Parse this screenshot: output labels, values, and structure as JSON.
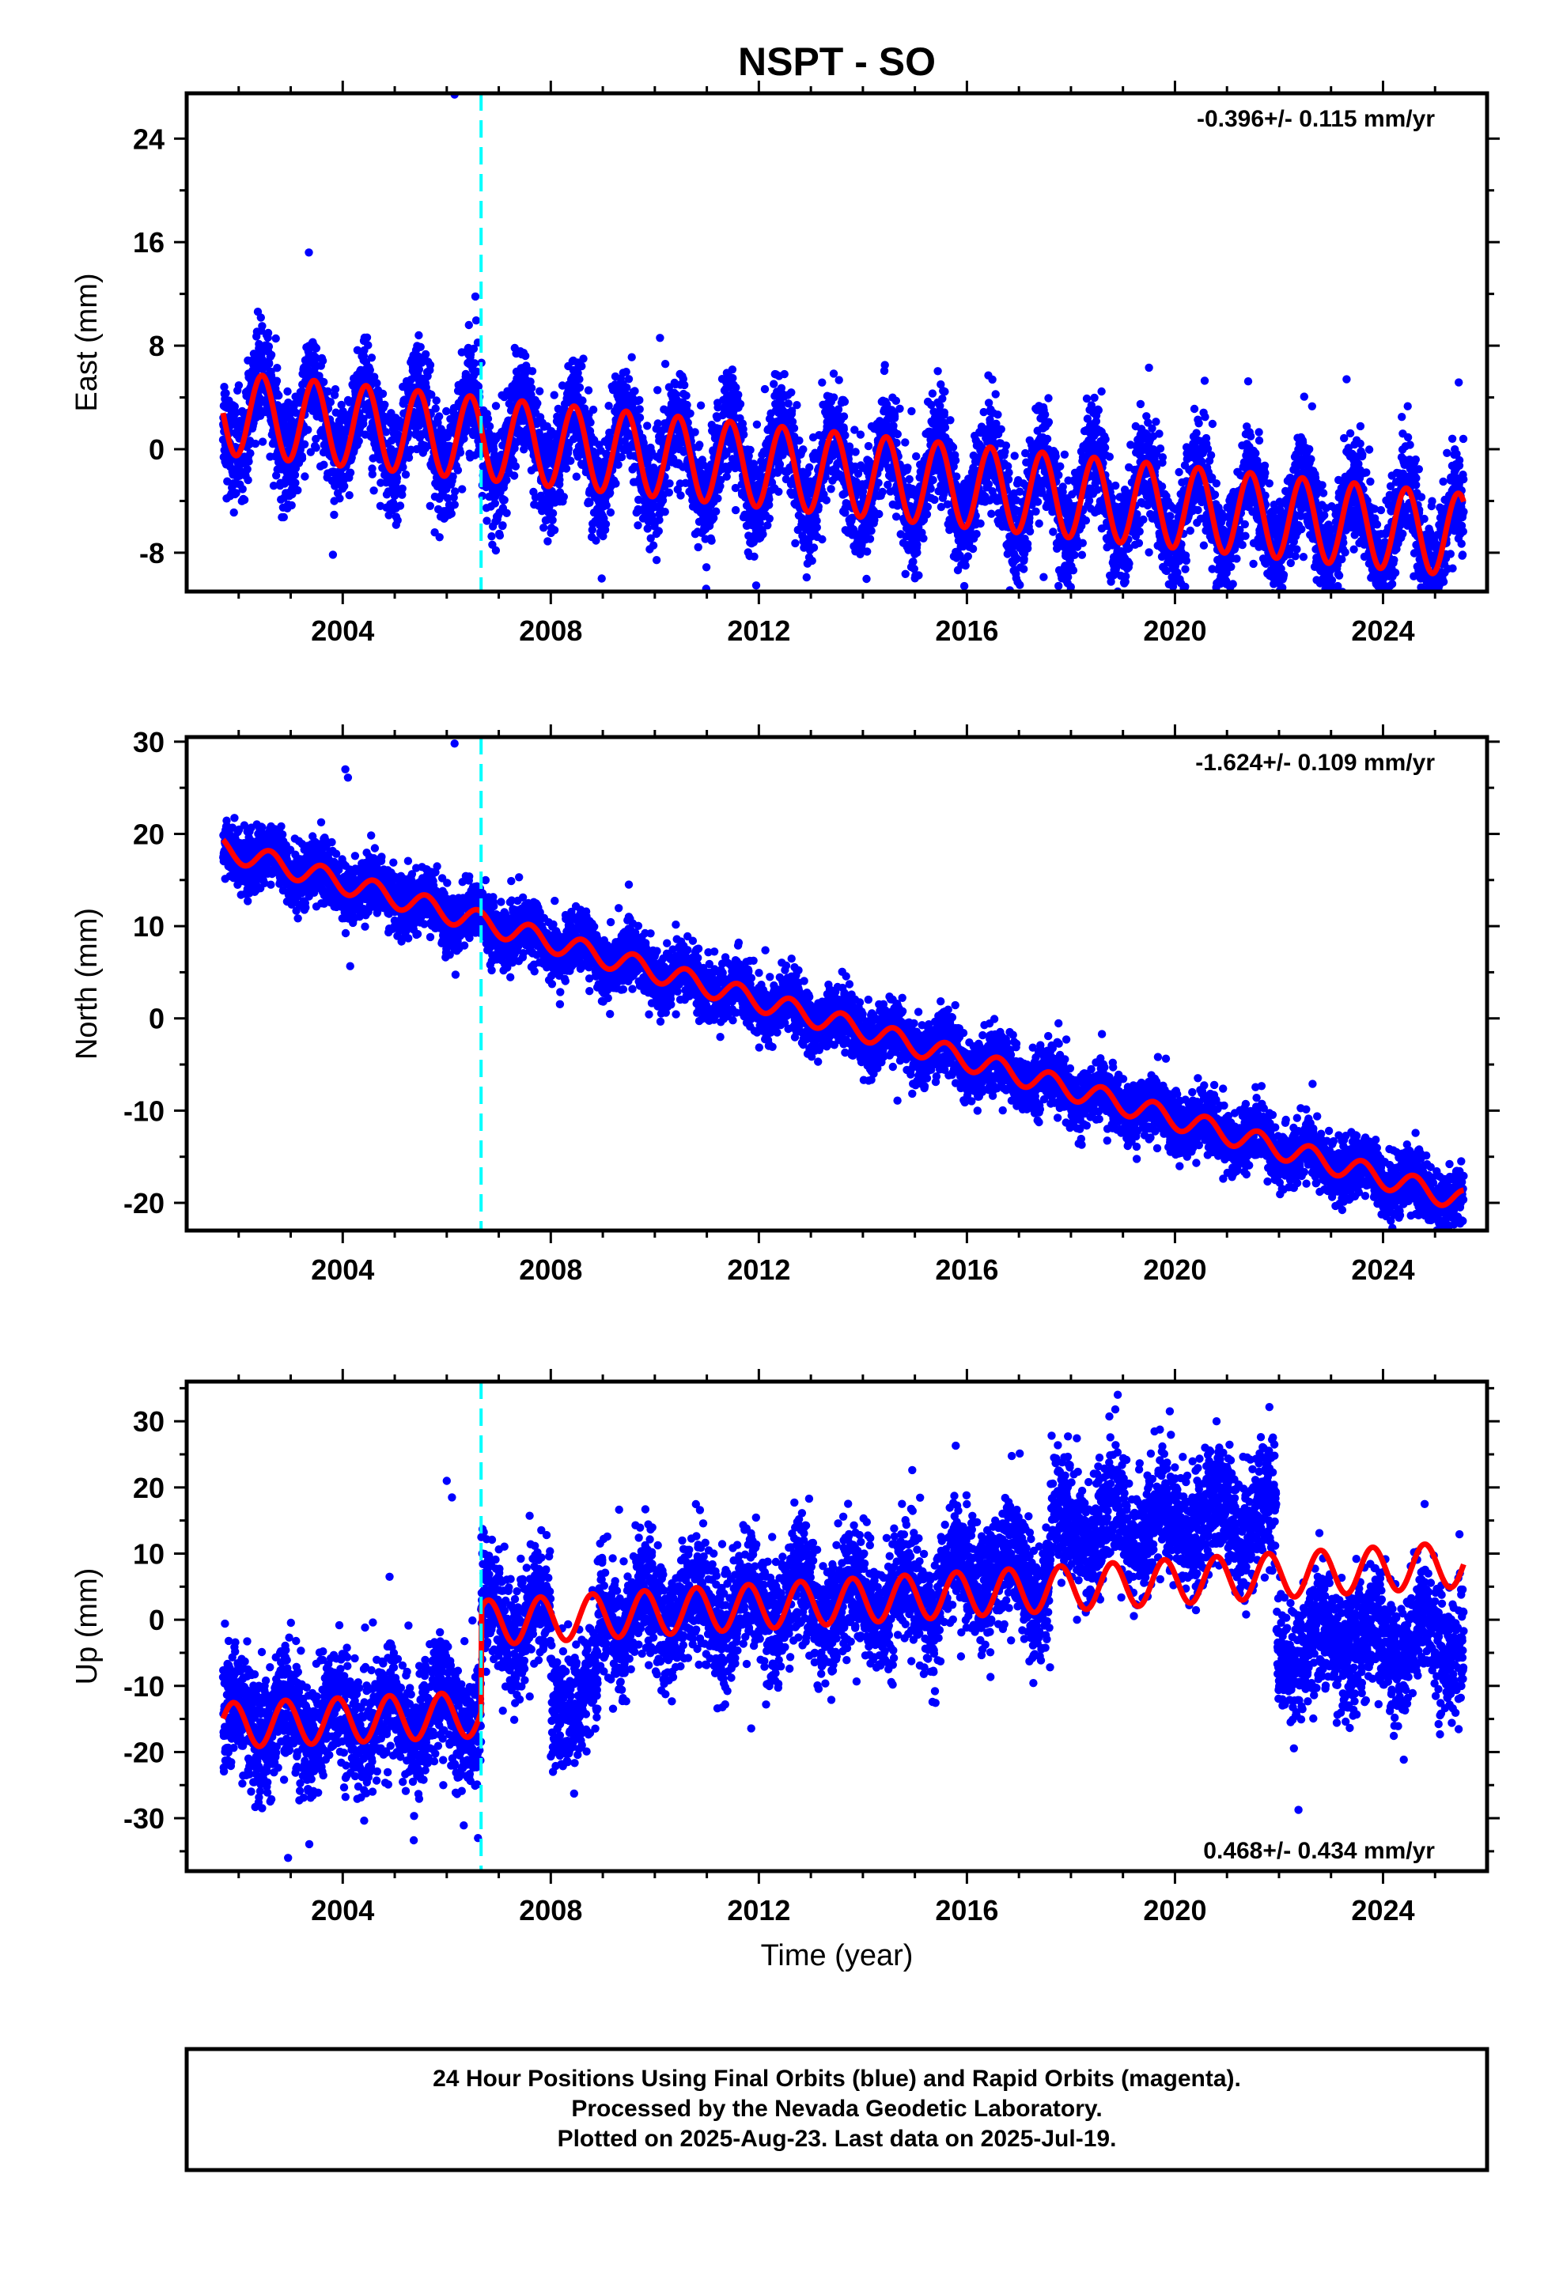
{
  "colors": {
    "data_points": "#0000ff",
    "model_line": "#ff0000",
    "offset_line": "#00ffff",
    "frame": "#000000",
    "background": "#ffffff"
  },
  "chart_data": {
    "title": "NSPT - SO",
    "type": "scatter",
    "x_range": [
      2001.0,
      2026.0
    ],
    "x_ticks": [
      "2004",
      "2008",
      "2012",
      "2016",
      "2020",
      "2024"
    ],
    "x_tick_values": [
      2004,
      2008,
      2012,
      2016,
      2020,
      2024
    ],
    "xlabel": "Time (year)",
    "data_start": 2001.7,
    "data_end": 2025.55,
    "offset_epoch": 2006.66,
    "panels": [
      {
        "id": "east",
        "ylabel": "East (mm)",
        "ylim": [
          -11,
          27.5
        ],
        "yticks": [
          "24",
          "16",
          "8",
          "0",
          "-8"
        ],
        "ytick_values": [
          24,
          16,
          8,
          0,
          -8
        ],
        "rate_text": "-0.396+/- 0.115 mm/yr",
        "rate_position": "top-right",
        "model_segments": [
          {
            "start": 2001.7,
            "end": 2025.55,
            "offset_at_start": 2.8,
            "slope": -0.396,
            "annual_amplitude": 3.2,
            "annual_peak": 2002.45,
            "noise": 2.0
          }
        ],
        "outliers": [
          [
            2006.15,
            27.4
          ],
          [
            2006.55,
            11.8
          ],
          [
            2003.35,
            15.2
          ],
          [
            2010.1,
            8.6
          ],
          [
            2023.3,
            5.4
          ],
          [
            2019.5,
            6.3
          ]
        ]
      },
      {
        "id": "north",
        "ylabel": "North (mm)",
        "ylim": [
          -23,
          30.5
        ],
        "yticks": [
          "30",
          "20",
          "10",
          "0",
          "-10",
          "-20"
        ],
        "ytick_values": [
          30,
          20,
          10,
          0,
          -10,
          -20
        ],
        "rate_text": "-1.624+/- 0.109 mm/yr",
        "rate_position": "top-right",
        "model_segments": [
          {
            "start": 2001.7,
            "end": 2025.55,
            "offset_at_start": 18.4,
            "slope": -1.6,
            "annual_amplitude": 1.2,
            "annual_peak": 2002.6,
            "noise": 1.6
          }
        ],
        "outliers": [
          [
            2006.15,
            29.8
          ],
          [
            2004.05,
            27.0
          ],
          [
            2004.1,
            26.1
          ],
          [
            2009.5,
            14.5
          ]
        ]
      },
      {
        "id": "up",
        "ylabel": "Up (mm)",
        "ylim": [
          -38,
          36
        ],
        "yticks": [
          "30",
          "20",
          "10",
          "0",
          "-10",
          "-20",
          "-30"
        ],
        "ytick_values": [
          30,
          20,
          10,
          0,
          -10,
          -20,
          -30
        ],
        "rate_text": "0.468+/- 0.434 mm/yr",
        "rate_position": "bottom-right",
        "model_segments": [
          {
            "start": 2001.7,
            "end": 2006.66,
            "offset_at_start": -16.0,
            "slope": 0.35,
            "annual_amplitude": 3.4,
            "annual_peak": 2002.9,
            "noise": 4.5
          },
          {
            "start": 2006.66,
            "end": 2025.55,
            "offset_at_start": -0.5,
            "slope": 0.47,
            "annual_amplitude": 3.4,
            "annual_peak": 2007.8,
            "noise": 4.5
          }
        ],
        "data_shifts": [
          {
            "start": 2008.0,
            "end": 2008.9,
            "shift": -12
          },
          {
            "start": 2015.5,
            "end": 2017.2,
            "shift": 3
          },
          {
            "start": 2017.6,
            "end": 2021.95,
            "shift": 9
          },
          {
            "start": 2021.95,
            "end": 2025.55,
            "shift": -11
          }
        ],
        "outliers": [
          [
            2006.0,
            21.0
          ],
          [
            2006.1,
            18.5
          ],
          [
            2018.9,
            34.0
          ],
          [
            2019.9,
            31.5
          ],
          [
            2020.8,
            30.0
          ],
          [
            2002.95,
            -36.0
          ],
          [
            2006.6,
            -33.0
          ],
          [
            2024.8,
            17.5
          ],
          [
            2004.9,
            6.5
          ]
        ]
      }
    ]
  },
  "footer": {
    "line1": "24 Hour Positions Using Final Orbits (blue) and Rapid Orbits (magenta).",
    "line2": "Processed by the Nevada Geodetic Laboratory.",
    "line3": "Plotted on 2025-Aug-23. Last data on 2025-Jul-19."
  }
}
